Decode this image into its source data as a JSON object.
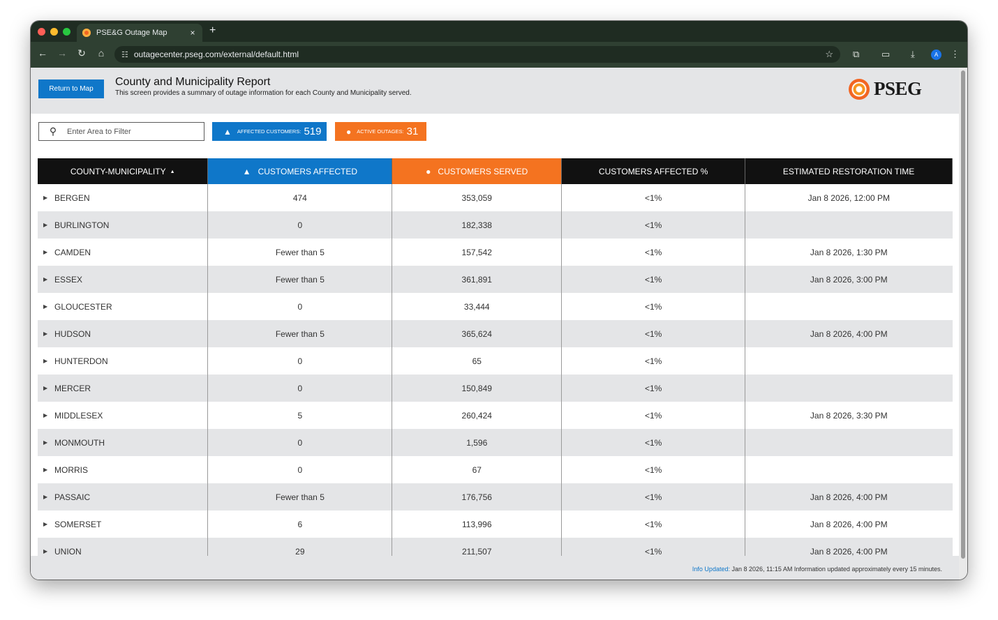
{
  "browser": {
    "tab_title": "PSE&G Outage Map",
    "tab_close": "×",
    "new_tab": "+",
    "url": "outagecenter.pseg.com/external/default.html",
    "profile_initial": "A"
  },
  "header": {
    "return_label": "Return to Map",
    "title": "County and Municipality Report",
    "subtitle": "This screen provides a summary of outage information for each County and Municipality served.",
    "logo_text": "PSEG"
  },
  "filter": {
    "placeholder": "Enter Area to Filter"
  },
  "stats": {
    "affected_label": "Affected Customers:",
    "affected_value": "519",
    "outages_label": "Active Outages:",
    "outages_value": "31"
  },
  "table": {
    "headers": {
      "name": "County-Municipality",
      "affected": "Customers Affected",
      "served": "Customers Served",
      "pct": "Customers Affected %",
      "est": "Estimated Restoration Time"
    },
    "rows": [
      {
        "name": "BERGEN",
        "affected": "474",
        "served": "353,059",
        "pct": "<1%",
        "est": "Jan 8 2026, 12:00 PM"
      },
      {
        "name": "BURLINGTON",
        "affected": "0",
        "served": "182,338",
        "pct": "<1%",
        "est": ""
      },
      {
        "name": "CAMDEN",
        "affected": "Fewer than 5",
        "served": "157,542",
        "pct": "<1%",
        "est": "Jan 8 2026, 1:30 PM"
      },
      {
        "name": "ESSEX",
        "affected": "Fewer than 5",
        "served": "361,891",
        "pct": "<1%",
        "est": "Jan 8 2026, 3:00 PM"
      },
      {
        "name": "GLOUCESTER",
        "affected": "0",
        "served": "33,444",
        "pct": "<1%",
        "est": ""
      },
      {
        "name": "HUDSON",
        "affected": "Fewer than 5",
        "served": "365,624",
        "pct": "<1%",
        "est": "Jan 8 2026, 4:00 PM"
      },
      {
        "name": "HUNTERDON",
        "affected": "0",
        "served": "65",
        "pct": "<1%",
        "est": ""
      },
      {
        "name": "MERCER",
        "affected": "0",
        "served": "150,849",
        "pct": "<1%",
        "est": ""
      },
      {
        "name": "MIDDLESEX",
        "affected": "5",
        "served": "260,424",
        "pct": "<1%",
        "est": "Jan 8 2026, 3:30 PM"
      },
      {
        "name": "MONMOUTH",
        "affected": "0",
        "served": "1,596",
        "pct": "<1%",
        "est": ""
      },
      {
        "name": "MORRIS",
        "affected": "0",
        "served": "67",
        "pct": "<1%",
        "est": ""
      },
      {
        "name": "PASSAIC",
        "affected": "Fewer than 5",
        "served": "176,756",
        "pct": "<1%",
        "est": "Jan 8 2026, 4:00 PM"
      },
      {
        "name": "SOMERSET",
        "affected": "6",
        "served": "113,996",
        "pct": "<1%",
        "est": "Jan 8 2026, 4:00 PM"
      },
      {
        "name": "UNION",
        "affected": "29",
        "served": "211,507",
        "pct": "<1%",
        "est": "Jan 8 2026, 4:00 PM"
      }
    ]
  },
  "footer": {
    "label": "Info Updated:",
    "text": "Jan 8 2026, 11:15 AM Information updated approximately every 15 minutes."
  },
  "colors": {
    "brand_blue": "#0f77c9",
    "brand_orange": "#f47320",
    "header_black": "#111111"
  }
}
